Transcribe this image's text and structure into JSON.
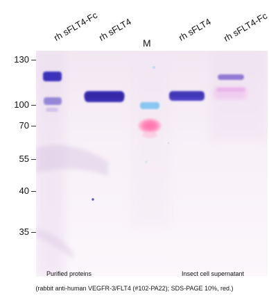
{
  "lanes": [
    {
      "label": "rh sFLT4-Fc"
    },
    {
      "label": "rh sFLT4"
    },
    {
      "label": "M"
    },
    {
      "label": "rh sFLT4"
    },
    {
      "label": "rh sFLT4-Fc"
    }
  ],
  "markers": [
    {
      "label": "130"
    },
    {
      "label": "100"
    },
    {
      "label": "70"
    },
    {
      "label": "55"
    },
    {
      "label": "40"
    },
    {
      "label": "35"
    }
  ],
  "notes": {
    "left": "Purified proteins",
    "right": "Insect cell supernatant"
  },
  "caption": "(rabbit anti-human VEGFR-3/FLT4 (#102-PA22); SDS-PAGE 10%, red.)"
}
